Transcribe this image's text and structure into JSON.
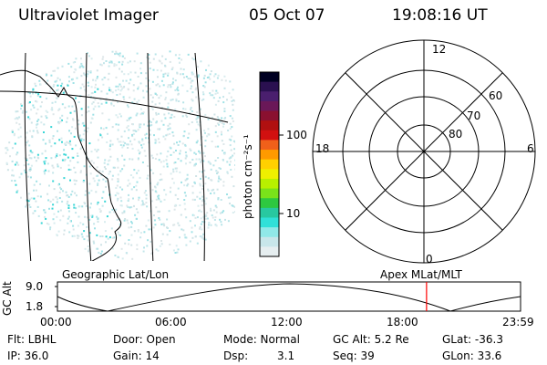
{
  "header": {
    "instrument": "Ultraviolet Imager",
    "date": "05 Oct 07",
    "time": "19:08:16 UT"
  },
  "colorbar": {
    "label": "photon cm⁻²s⁻¹",
    "ticks": [
      "100",
      "10"
    ],
    "colors": [
      "#000022",
      "#2a1050",
      "#4a1f6e",
      "#6a1858",
      "#8a1030",
      "#b01010",
      "#d21010",
      "#f0601a",
      "#ff9a00",
      "#ffd000",
      "#eef000",
      "#b8f000",
      "#7ae21a",
      "#2ec840",
      "#28c8a0",
      "#30e0d8",
      "#90e8e8",
      "#c8e6ea",
      "#e6eef0"
    ]
  },
  "map_left": {
    "caption": "Geographic Lat/Lon"
  },
  "polar": {
    "caption": "Apex MLat/MLT",
    "mlt_labels": {
      "top": "12",
      "bottom": "0",
      "left": "18",
      "right": "6"
    },
    "lat_labels": [
      "60",
      "70",
      "80"
    ]
  },
  "altitude_strip": {
    "ylabel": "GC Alt",
    "ytick_top": "9.0",
    "ytick_bottom": "1.8",
    "xticks": [
      "00:00",
      "06:00",
      "12:00",
      "18:00",
      "23:59"
    ],
    "marker_time_fraction": 0.797,
    "marker_color": "#ff0000"
  },
  "status": {
    "flt": "Flt: LBHL",
    "ip": "IP: 36.0",
    "door": "Door: Open",
    "gain": "Gain: 14",
    "mode": "Mode: Normal",
    "dsp_label": "Dsp:",
    "dsp_value": "3.1",
    "gc_alt": "GC Alt: 5.2 Re",
    "seq": "Seq: 39",
    "glat": "GLat: -36.3",
    "glon": "GLon: 33.6"
  }
}
